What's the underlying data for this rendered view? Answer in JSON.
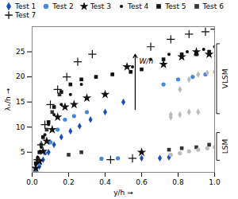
{
  "chart_data": {
    "type": "scatter",
    "xlabel": "y/h",
    "ylabel": "λₓ/h",
    "xlim": [
      0,
      1.0
    ],
    "ylim": [
      1,
      30
    ],
    "xticks": [
      {
        "value": 0,
        "label": "0.0"
      },
      0.2,
      0.4,
      0.6,
      0.8,
      {
        "value": 1.0,
        "label": "1.0"
      }
    ],
    "yticks": [
      5,
      10,
      15,
      20,
      25
    ],
    "legend": "top",
    "series": [
      {
        "name": "Test 1",
        "color": "#1450b8",
        "marker": "diamond",
        "x": [
          0.02,
          0.04,
          0.06,
          0.09,
          0.12,
          0.16,
          0.21,
          0.26,
          0.32,
          0.4,
          0.5,
          0.6,
          0.7,
          0.75
        ],
        "y": [
          1.4,
          2.2,
          3.5,
          5.0,
          6.5,
          8.0,
          9.2,
          10.2,
          11.5,
          13.0,
          15.0,
          3.8,
          3.8,
          4.0
        ]
      },
      {
        "name": "Test 2",
        "color": "#4488dd",
        "marker": "circle",
        "x": [
          0.02,
          0.04,
          0.07,
          0.1,
          0.14,
          0.18,
          0.23,
          0.3,
          0.38,
          0.47,
          0.72,
          0.8,
          0.88,
          0.95
        ],
        "y": [
          1.5,
          2.8,
          4.8,
          7.0,
          9.5,
          11.5,
          12.2,
          13.0,
          3.7,
          3.8,
          18.5,
          19.5,
          20.0,
          20.5
        ]
      },
      {
        "name": "Test 3",
        "color": "#111111",
        "marker": "star",
        "x": [
          0.02,
          0.04,
          0.06,
          0.08,
          0.11,
          0.14,
          0.18,
          0.23,
          0.3,
          0.4,
          0.52,
          0.6,
          0.72,
          0.82,
          0.9,
          0.97
        ],
        "y": [
          1.8,
          3.2,
          5.2,
          7.2,
          9.5,
          12.0,
          14.0,
          14.5,
          15.8,
          16.5,
          22.0,
          5.0,
          22.5,
          24.0,
          25.0,
          24.5
        ]
      },
      {
        "name": "Test 4",
        "color": "#111111",
        "marker": "point",
        "x": [
          0.02,
          0.03,
          0.05,
          0.07,
          0.09,
          0.12,
          0.16,
          0.21,
          0.27,
          0.35,
          0.44,
          0.55,
          0.65,
          0.75,
          0.85,
          0.94,
          1.0
        ],
        "y": [
          2.5,
          4.0,
          6.0,
          8.5,
          10.5,
          12.5,
          14.5,
          16.5,
          18.5,
          20.0,
          20.5,
          22.0,
          23.5,
          24.5,
          25.0,
          25.5,
          26.0
        ]
      },
      {
        "name": "Test 5",
        "color": "#111111",
        "marker": "square",
        "x": [
          0.02,
          0.04,
          0.06,
          0.09,
          0.12,
          0.16,
          0.21,
          0.27,
          0.35,
          0.44,
          0.54,
          0.6,
          0.72,
          0.82,
          0.9,
          0.97
        ],
        "y": [
          2.8,
          5.0,
          8.0,
          11.0,
          14.0,
          17.0,
          18.5,
          19.5,
          20.0,
          20.5,
          21.0,
          21.5,
          23.5,
          24.5,
          24.5,
          25.0
        ]
      },
      {
        "name": "Test 6",
        "color": "#333333",
        "marker": "square",
        "x": [
          0.03,
          0.05,
          0.08,
          0.11,
          0.15,
          0.2,
          0.27,
          0.75,
          0.82,
          0.9,
          0.97
        ],
        "y": [
          3.5,
          6.5,
          9.5,
          13.0,
          16.5,
          4.5,
          5.0,
          5.5,
          5.8,
          6.0,
          6.5
        ]
      },
      {
        "name": "Test 7",
        "color": "#111111",
        "marker": "plus",
        "x": [
          0.03,
          0.05,
          0.07,
          0.1,
          0.14,
          0.19,
          0.25,
          0.33,
          0.43,
          0.55,
          0.65,
          0.76,
          0.86,
          0.95,
          1.0
        ],
        "y": [
          3.5,
          6.5,
          10.5,
          14.5,
          17.5,
          20.0,
          23.0,
          24.5,
          3.5,
          3.8,
          26.0,
          27.5,
          28.5,
          29.0,
          29.5
        ]
      },
      {
        "color": "#bbbbbb",
        "marker": "diamond",
        "x": [
          0.76,
          0.81,
          0.86,
          0.91,
          0.96,
          1.0
        ],
        "y": [
          12.5,
          17.5,
          19.5,
          20.5,
          20.8,
          21.0
        ]
      },
      {
        "color": "#bbbbbb",
        "marker": "diamond",
        "x": [
          0.76,
          0.81,
          0.86,
          0.91
        ],
        "y": [
          12.0,
          12.5,
          13.0,
          13.0
        ]
      },
      {
        "color": "#bbbbbb",
        "marker": "circle",
        "x": [
          0.76,
          0.81,
          0.86,
          0.91,
          0.96,
          1.0
        ],
        "y": [
          4.5,
          4.8,
          5.2,
          5.5,
          5.8,
          6.0
        ]
      }
    ],
    "annotations": [
      {
        "type": "arrow",
        "x": 0.565,
        "y_start": 13.5,
        "y_end": 24.5,
        "text": "W/h"
      }
    ],
    "brackets": [
      {
        "label": "VLSM",
        "y": [
          12.6,
          26.52
        ]
      },
      {
        "label": "LSM",
        "y": [
          3.32,
          8.83
        ]
      }
    ]
  }
}
